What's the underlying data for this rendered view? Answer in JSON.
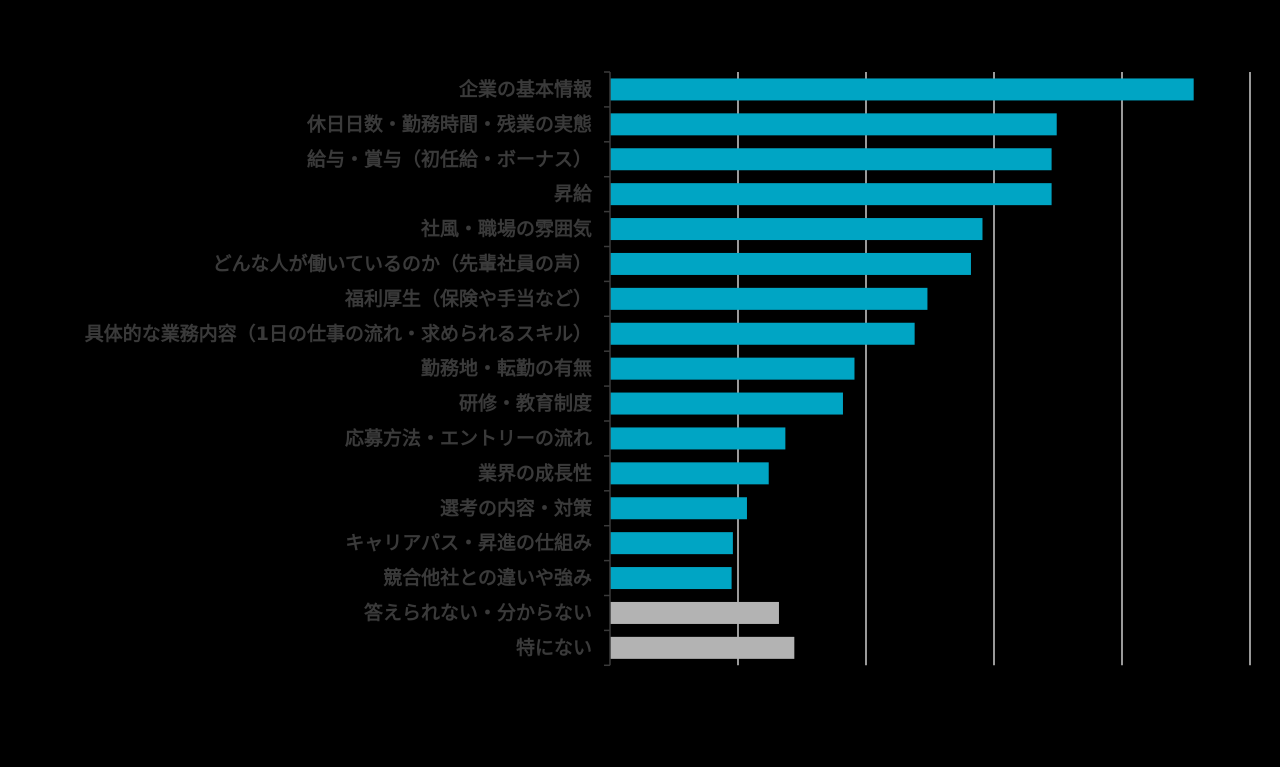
{
  "chart_data": {
    "type": "bar",
    "orientation": "horizontal",
    "title": "",
    "xlabel": "",
    "ylabel": "",
    "xlim": [
      0,
      50
    ],
    "grid": true,
    "categories": [
      "企業の基本情報",
      "休日日数・勤務時間・残業の実態",
      "給与・賞与（初任給・ボーナス）",
      "昇給",
      "社風・職場の雰囲気",
      "どんな人が働いているのか（先輩社員の声）",
      "福利厚生（保険や手当など）",
      "具体的な業務内容（1日の仕事の流れ・求められるスキル）",
      "勤務地・転勤の有無",
      "研修・教育制度",
      "応募方法・エントリーの流れ",
      "業界の成長性",
      "選考の内容・対策",
      "キャリアパス・昇進の仕組み",
      "競合他社との違いや強み",
      "答えられない・分からない",
      "特にない"
    ],
    "values": [
      45.6,
      34.9,
      34.5,
      34.5,
      29.1,
      28.2,
      24.8,
      23.8,
      19.1,
      18.2,
      13.7,
      12.4,
      10.7,
      9.6,
      9.5,
      13.2,
      14.4
    ],
    "colors": {
      "main": "#00a5c4",
      "other": "#b3b3b3",
      "grid": "#ffffff",
      "label": "#3a3a3a"
    },
    "other_categories": [
      "答えられない・分からない",
      "特にない"
    ]
  }
}
